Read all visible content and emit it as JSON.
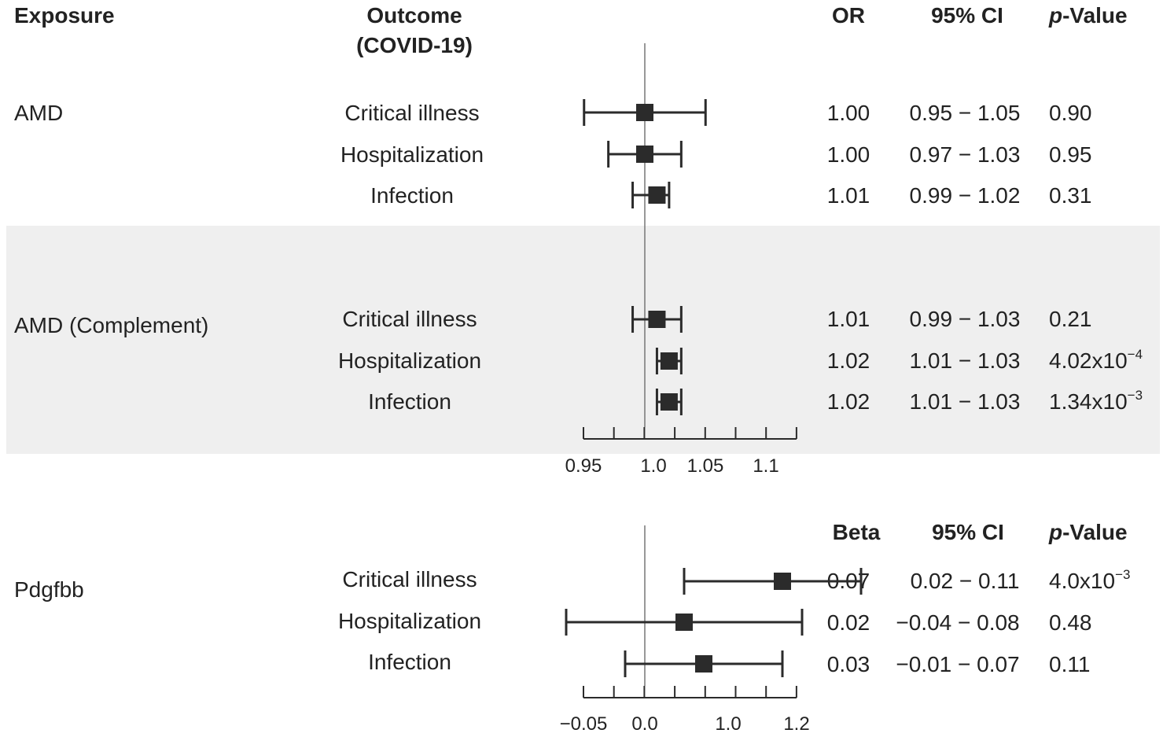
{
  "headers": {
    "exposure": "Exposure",
    "outcome_line1": "Outcome",
    "outcome_line2": "(COVID-19)",
    "or": "OR",
    "ci": "95% CI",
    "p_italic": "p",
    "p_rest": "-Value",
    "beta": "Beta",
    "ci2": "95% CI",
    "p2_italic": "p",
    "p2_rest": "-Value"
  },
  "chart_data": [
    {
      "type": "forest",
      "measure": "OR",
      "reference_line": 1.0,
      "xlim": [
        0.95,
        1.125
      ],
      "ticks": [
        0.95,
        0.975,
        1.0,
        1.025,
        1.05,
        1.075,
        1.1,
        1.125
      ],
      "tick_labels": [
        {
          "value": 0.95,
          "label": "0.95"
        },
        {
          "value": 1.0,
          "label": "1.0"
        },
        {
          "value": 1.05,
          "label": "1.05"
        },
        {
          "value": 1.1,
          "label": "1.1"
        }
      ],
      "groups": [
        {
          "exposure": "AMD",
          "shaded": false,
          "rows": [
            {
              "outcome": "Critical illness",
              "est": 1.0,
              "lo": 0.95,
              "hi": 1.05,
              "est_text": "1.00",
              "ci_text": "0.95 − 1.05",
              "p_text": "0.90",
              "p_exp": ""
            },
            {
              "outcome": "Hospitalization",
              "est": 1.0,
              "lo": 0.97,
              "hi": 1.03,
              "est_text": "1.00",
              "ci_text": "0.97 − 1.03",
              "p_text": "0.95",
              "p_exp": ""
            },
            {
              "outcome": "Infection",
              "est": 1.01,
              "lo": 0.99,
              "hi": 1.02,
              "est_text": "1.01",
              "ci_text": "0.99 − 1.02",
              "p_text": "0.31",
              "p_exp": ""
            }
          ]
        },
        {
          "exposure": "AMD (Complement)",
          "shaded": true,
          "rows": [
            {
              "outcome": "Critical illness",
              "est": 1.01,
              "lo": 0.99,
              "hi": 1.03,
              "est_text": "1.01",
              "ci_text": "0.99 − 1.03",
              "p_text": "0.21",
              "p_exp": ""
            },
            {
              "outcome": "Hospitalization",
              "est": 1.02,
              "lo": 1.01,
              "hi": 1.03,
              "est_text": "1.02",
              "ci_text": "1.01 − 1.03",
              "p_text": "4.02x10",
              "p_exp": "−4"
            },
            {
              "outcome": "Infection",
              "est": 1.02,
              "lo": 1.01,
              "hi": 1.03,
              "est_text": "1.02",
              "ci_text": "1.01 − 1.03",
              "p_text": "1.34x10",
              "p_exp": "−3"
            }
          ]
        }
      ]
    },
    {
      "type": "forest",
      "measure": "Beta",
      "reference_line": 0.0,
      "tick_labels": [
        {
          "value": -0.05,
          "label": "−0.05"
        },
        {
          "value": 0.0,
          "label": "0.0"
        },
        {
          "value": 1.0,
          "label": "1.0"
        },
        {
          "value": 1.2,
          "label": "1.2"
        }
      ],
      "groups": [
        {
          "exposure": "Pdgfbb",
          "shaded": false,
          "rows": [
            {
              "outcome": "Critical illness",
              "est": 0.07,
              "lo": 0.02,
              "hi": 0.11,
              "est_text": "0.07",
              "ci_text": "0.02 − 0.11",
              "p_text": "4.0x10",
              "p_exp": "−3"
            },
            {
              "outcome": "Hospitalization",
              "est": 0.02,
              "lo": -0.04,
              "hi": 0.08,
              "est_text": "0.02",
              "ci_text": "−0.04 − 0.08",
              "p_text": "0.48",
              "p_exp": ""
            },
            {
              "outcome": "Infection",
              "est": 0.03,
              "lo": -0.01,
              "hi": 0.07,
              "est_text": "0.03",
              "ci_text": "−0.01 − 0.07",
              "p_text": "0.11",
              "p_exp": ""
            }
          ]
        }
      ]
    }
  ]
}
